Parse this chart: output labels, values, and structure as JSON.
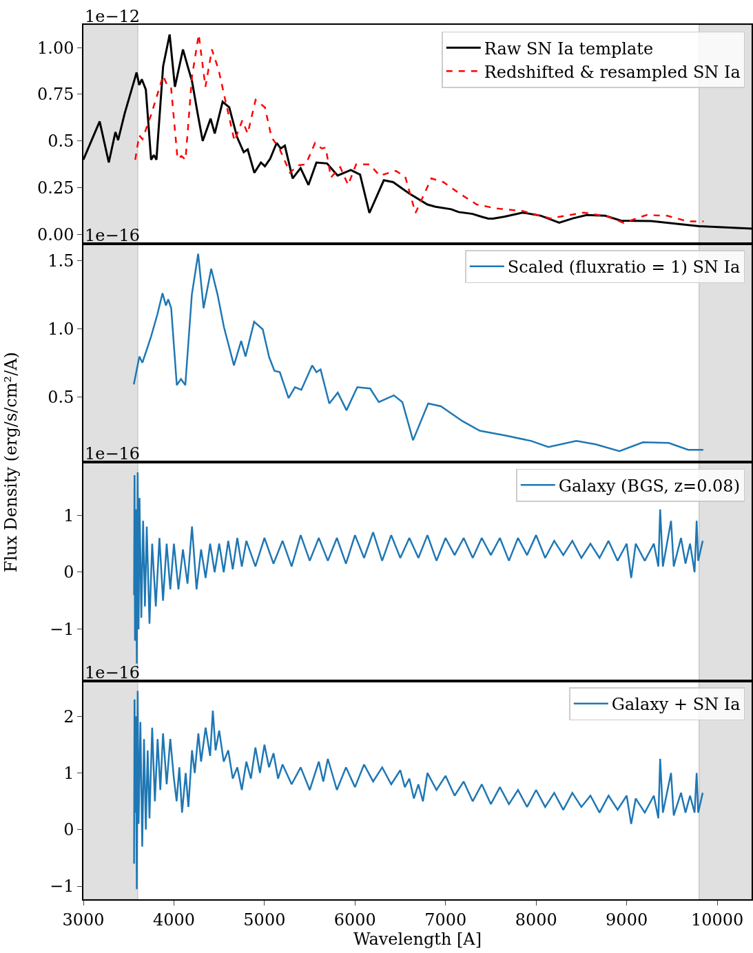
{
  "chart_data": [
    {
      "type": "line",
      "xlim": [
        3000,
        10380
      ],
      "ylim": [
        -0.048,
        1.122
      ],
      "yticks": [
        {
          "value": 0,
          "label": "0.00"
        },
        0.25,
        0.5,
        0.75,
        {
          "value": 1,
          "label": "1.00"
        }
      ],
      "tick_labels": "y",
      "legend": "top right",
      "grid": false,
      "annotations": [
        "1e−12"
      ],
      "bands": [
        {
          "axis": "x",
          "from": 3000,
          "to": 3600,
          "color": "#e0e0e0"
        },
        {
          "axis": "x",
          "from": 9800,
          "to": 10380,
          "color": "#e0e0e0"
        }
      ],
      "series": [
        {
          "name": "Raw SN Ia template",
          "color": "#000000",
          "line_style": "solid",
          "x": [
            3000,
            3180,
            3281,
            3354,
            3384,
            3456,
            3588,
            3617,
            3646,
            3690,
            3748,
            3778,
            3807,
            3881,
            3953,
            4011,
            4100,
            4158,
            4200,
            4261,
            4318,
            4405,
            4451,
            4538,
            4611,
            4698,
            4771,
            4815,
            4888,
            4961,
            5005,
            5063,
            5135,
            5179,
            5225,
            5311,
            5399,
            5486,
            5574,
            5691,
            5808,
            5954,
            6056,
            6159,
            6318,
            6421,
            6596,
            6800,
            6888,
            7062,
            7143,
            7297,
            7397,
            7473,
            7523,
            7647,
            7852,
            8054,
            8255,
            8406,
            8558,
            8763,
            8938,
            9269,
            9801,
            10380
          ],
          "values": [
            0.4,
            0.605,
            0.385,
            0.548,
            0.505,
            0.647,
            0.867,
            0.8,
            0.83,
            0.775,
            0.4,
            0.425,
            0.4,
            0.9,
            1.07,
            0.79,
            0.99,
            0.89,
            0.82,
            0.65,
            0.5,
            0.62,
            0.54,
            0.71,
            0.68,
            0.52,
            0.44,
            0.455,
            0.33,
            0.385,
            0.365,
            0.405,
            0.49,
            0.46,
            0.475,
            0.3,
            0.355,
            0.265,
            0.385,
            0.38,
            0.315,
            0.345,
            0.32,
            0.115,
            0.29,
            0.28,
            0.22,
            0.16,
            0.148,
            0.135,
            0.12,
            0.11,
            0.095,
            0.085,
            0.085,
            0.095,
            0.117,
            0.1,
            0.063,
            0.086,
            0.104,
            0.1,
            0.074,
            0.072,
            0.044,
            0.031
          ]
        },
        {
          "name": "Redshifted & resampled SN Ia",
          "color": "#ff0000",
          "line_style": "dashed",
          "x": [
            3573,
            3617,
            3653,
            3748,
            3881,
            3924,
            3968,
            4040,
            4084,
            4128,
            4200,
            4274,
            4348,
            4420,
            4494,
            4567,
            4669,
            4755,
            4815,
            4902,
            5005,
            5078,
            5165,
            5282,
            5369,
            5457,
            5559,
            5632,
            5676,
            5734,
            5837,
            5924,
            6012,
            6159,
            6273,
            6450,
            6554,
            6668,
            6843,
            6976,
            7152,
            7346,
            7549,
            7852,
            8156,
            8525,
            8786,
            8967,
            9219,
            9447,
            9675,
            9850
          ],
          "values": [
            0.4,
            0.53,
            0.51,
            0.64,
            0.85,
            0.8,
            0.79,
            0.405,
            0.42,
            0.4,
            0.845,
            1.07,
            0.79,
            0.99,
            0.88,
            0.72,
            0.5,
            0.61,
            0.54,
            0.72,
            0.68,
            0.52,
            0.46,
            0.33,
            0.37,
            0.375,
            0.49,
            0.46,
            0.465,
            0.305,
            0.36,
            0.265,
            0.375,
            0.375,
            0.315,
            0.34,
            0.31,
            0.115,
            0.3,
            0.28,
            0.22,
            0.16,
            0.14,
            0.125,
            0.086,
            0.117,
            0.096,
            0.062,
            0.104,
            0.1,
            0.07,
            0.07
          ]
        }
      ]
    },
    {
      "type": "line",
      "xlim": [
        3000,
        10380
      ],
      "ylim": [
        0.02,
        1.626
      ],
      "yticks": [
        0.5,
        {
          "value": 1,
          "label": "1.0"
        },
        1.5
      ],
      "tick_labels": "y",
      "legend": "top right",
      "grid": false,
      "annotations": [
        "1e−16"
      ],
      "ylabel": "Flux Density (erg/s/cm²/A)",
      "bands": [
        {
          "axis": "x",
          "from": 3000,
          "to": 3600,
          "color": "#e0e0e0"
        },
        {
          "axis": "x",
          "from": 9800,
          "to": 10380,
          "color": "#e0e0e0"
        }
      ],
      "series": [
        {
          "name": "Scaled (fluxratio = 1) SN Ia",
          "color": "#1f77b4",
          "line_style": "solid",
          "x": [
            3557,
            3619,
            3652,
            3747,
            3818,
            3874,
            3912,
            3937,
            3970,
            4032,
            4078,
            4126,
            4198,
            4268,
            4328,
            4412,
            4482,
            4553,
            4663,
            4743,
            4791,
            4886,
            4981,
            5052,
            5110,
            5170,
            5266,
            5337,
            5407,
            5527,
            5574,
            5620,
            5716,
            5810,
            5906,
            6025,
            6167,
            6263,
            6429,
            6523,
            6641,
            6808,
            6948,
            7188,
            7378,
            7662,
            7946,
            8136,
            8444,
            8657,
            8920,
            9181,
            9465,
            9679,
            9846
          ],
          "values": [
            0.59,
            0.795,
            0.75,
            0.94,
            1.106,
            1.26,
            1.17,
            1.215,
            1.15,
            0.585,
            0.63,
            0.585,
            1.25,
            1.55,
            1.15,
            1.44,
            1.25,
            1.01,
            0.73,
            0.91,
            0.795,
            1.05,
            0.995,
            0.79,
            0.69,
            0.68,
            0.49,
            0.57,
            0.55,
            0.73,
            0.68,
            0.7,
            0.45,
            0.53,
            0.4,
            0.57,
            0.56,
            0.46,
            0.51,
            0.46,
            0.18,
            0.45,
            0.43,
            0.32,
            0.25,
            0.215,
            0.175,
            0.13,
            0.175,
            0.15,
            0.1,
            0.165,
            0.16,
            0.11,
            0.11
          ]
        }
      ]
    },
    {
      "type": "line",
      "xlim": [
        3000,
        10380
      ],
      "ylim": [
        -1.9,
        1.93
      ],
      "yticks": [
        {
          "value": -1,
          "label": "−1"
        },
        0,
        1
      ],
      "tick_labels": "y",
      "legend": "top right",
      "grid": false,
      "annotations": [
        "1e−16"
      ],
      "bands": [
        {
          "axis": "x",
          "from": 3000,
          "to": 3600,
          "color": "#e0e0e0"
        },
        {
          "axis": "x",
          "from": 9800,
          "to": 10380,
          "color": "#e0e0e0"
        }
      ],
      "series": [
        {
          "name": "Galaxy (BGS, z=0.08)",
          "color": "#1f77b4",
          "line_style": "solid",
          "x": [
            3560,
            3565,
            3570,
            3580,
            3590,
            3600,
            3610,
            3620,
            3640,
            3660,
            3680,
            3700,
            3730,
            3760,
            3800,
            3840,
            3880,
            3920,
            3960,
            4000,
            4050,
            4100,
            4150,
            4200,
            4250,
            4300,
            4350,
            4400,
            4450,
            4500,
            4550,
            4600,
            4650,
            4700,
            4750,
            4800,
            4900,
            5000,
            5100,
            5200,
            5300,
            5400,
            5500,
            5600,
            5700,
            5800,
            5900,
            6000,
            6100,
            6200,
            6300,
            6400,
            6500,
            6600,
            6700,
            6800,
            6900,
            7000,
            7100,
            7200,
            7300,
            7400,
            7500,
            7600,
            7700,
            7800,
            7900,
            8000,
            8100,
            8200,
            8300,
            8400,
            8500,
            8600,
            8700,
            8800,
            8900,
            9000,
            9050,
            9100,
            9200,
            9300,
            9350,
            9370,
            9400,
            9490,
            9520,
            9600,
            9650,
            9700,
            9750,
            9773,
            9790,
            9840
          ],
          "values": [
            -0.4,
            1.7,
            -1.2,
            1.1,
            -1.6,
            1.75,
            -1.0,
            1.3,
            -0.8,
            0.9,
            -0.6,
            0.8,
            -0.9,
            0.5,
            -0.6,
            0.6,
            -0.5,
            0.5,
            -0.3,
            0.5,
            -0.3,
            0.4,
            -0.2,
            0.8,
            -0.3,
            0.4,
            -0.1,
            0.5,
            0.0,
            0.5,
            0.0,
            0.55,
            0.05,
            0.6,
            0.1,
            0.55,
            0.1,
            0.6,
            0.15,
            0.55,
            0.1,
            0.65,
            0.2,
            0.6,
            0.2,
            0.6,
            0.15,
            0.65,
            0.25,
            0.7,
            0.2,
            0.65,
            0.25,
            0.6,
            0.25,
            0.65,
            0.2,
            0.6,
            0.3,
            0.6,
            0.25,
            0.6,
            0.3,
            0.6,
            0.2,
            0.6,
            0.3,
            0.65,
            0.25,
            0.55,
            0.3,
            0.55,
            0.25,
            0.5,
            0.25,
            0.55,
            0.2,
            0.5,
            -0.1,
            0.5,
            0.2,
            0.5,
            0.1,
            1.1,
            0.1,
            0.9,
            0.1,
            0.6,
            0.15,
            0.5,
            0.0,
            0.9,
            0.2,
            0.55
          ]
        }
      ]
    },
    {
      "type": "line",
      "xlim": [
        3000,
        10380
      ],
      "xticks": [
        3000,
        4000,
        5000,
        6000,
        7000,
        8000,
        9000,
        10000
      ],
      "ylim": [
        -1.23,
        2.63
      ],
      "yticks": [
        {
          "value": -1,
          "label": "−1"
        },
        0,
        1,
        2
      ],
      "legend": "top right",
      "grid": false,
      "annotations": [
        "1e−16"
      ],
      "xlabel": "Wavelength [A]",
      "bands": [
        {
          "axis": "x",
          "from": 3000,
          "to": 3600,
          "color": "#e0e0e0"
        },
        {
          "axis": "x",
          "from": 9800,
          "to": 10380,
          "color": "#e0e0e0"
        }
      ],
      "series": [
        {
          "name": "Galaxy + SN Ia",
          "color": "#1f77b4",
          "line_style": "solid",
          "x": [
            3560,
            3565,
            3570,
            3580,
            3590,
            3600,
            3610,
            3630,
            3650,
            3670,
            3690,
            3710,
            3730,
            3760,
            3790,
            3820,
            3850,
            3880,
            3920,
            3960,
            4000,
            4030,
            4060,
            4090,
            4130,
            4160,
            4200,
            4230,
            4270,
            4300,
            4350,
            4400,
            4430,
            4460,
            4500,
            4550,
            4600,
            4650,
            4700,
            4750,
            4800,
            4850,
            4900,
            4950,
            5000,
            5050,
            5100,
            5150,
            5200,
            5300,
            5400,
            5500,
            5600,
            5650,
            5700,
            5800,
            5900,
            6000,
            6100,
            6200,
            6300,
            6400,
            6500,
            6550,
            6600,
            6650,
            6700,
            6750,
            6800,
            6900,
            7000,
            7100,
            7200,
            7300,
            7400,
            7500,
            7600,
            7700,
            7800,
            7900,
            8000,
            8100,
            8200,
            8300,
            8400,
            8500,
            8600,
            8700,
            8800,
            8900,
            9000,
            9050,
            9100,
            9200,
            9300,
            9350,
            9370,
            9400,
            9490,
            9520,
            9600,
            9650,
            9700,
            9750,
            9773,
            9790,
            9840
          ],
          "values": [
            -0.6,
            2.3,
            0.3,
            2.0,
            -1.05,
            2.45,
            0.1,
            1.9,
            -0.3,
            1.6,
            0.0,
            1.4,
            0.2,
            1.8,
            0.5,
            1.6,
            0.7,
            1.7,
            0.8,
            1.6,
            0.9,
            0.5,
            1.1,
            0.3,
            1.0,
            0.4,
            1.4,
            1.0,
            1.7,
            1.2,
            1.8,
            1.3,
            2.1,
            1.4,
            1.75,
            1.2,
            1.4,
            0.9,
            1.1,
            0.7,
            1.2,
            0.9,
            1.45,
            1.0,
            1.5,
            1.1,
            1.35,
            0.9,
            1.15,
            0.8,
            1.1,
            0.7,
            1.2,
            0.85,
            1.25,
            0.7,
            1.1,
            0.75,
            1.15,
            0.85,
            1.1,
            0.8,
            1.05,
            0.75,
            0.9,
            0.55,
            0.8,
            0.5,
            1.0,
            0.7,
            0.95,
            0.6,
            0.85,
            0.5,
            0.8,
            0.45,
            0.75,
            0.45,
            0.7,
            0.4,
            0.7,
            0.4,
            0.65,
            0.35,
            0.65,
            0.4,
            0.6,
            0.3,
            0.6,
            0.35,
            0.6,
            0.1,
            0.55,
            0.3,
            0.6,
            0.2,
            1.25,
            0.3,
            1.0,
            0.25,
            0.65,
            0.3,
            0.6,
            0.3,
            1.0,
            0.3,
            0.65
          ]
        }
      ]
    }
  ]
}
